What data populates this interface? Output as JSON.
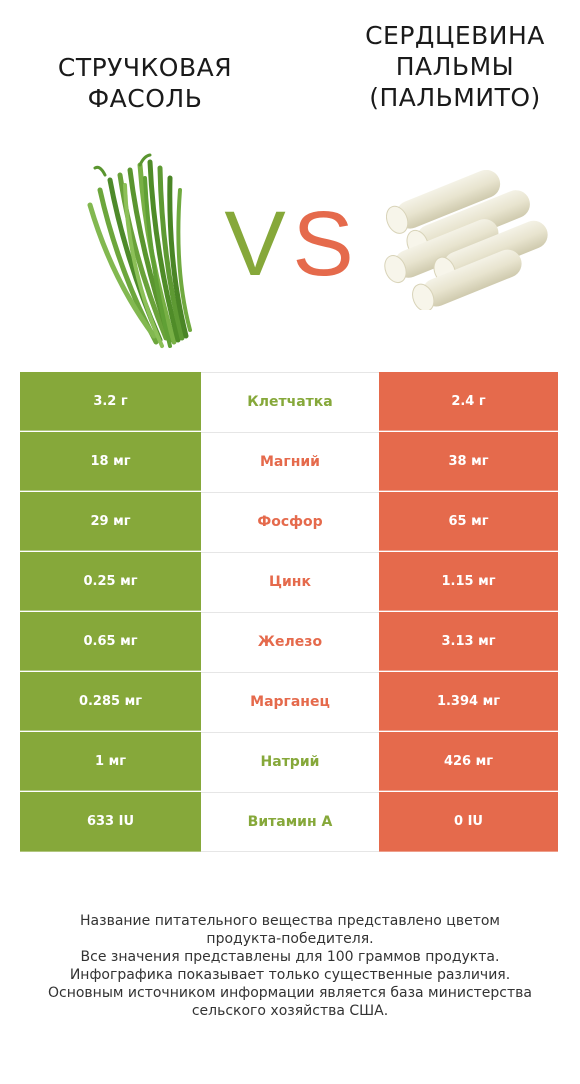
{
  "left_product": {
    "title_lines": [
      "СТРУЧКОВАЯ",
      "ФАСОЛЬ"
    ],
    "color": "#86a83a",
    "image": "green-beans-image"
  },
  "right_product": {
    "title_lines": [
      "СЕРДЦЕВИНА",
      "ПАЛЬМЫ",
      "(ПАЛЬМИТО)"
    ],
    "color": "#e56a4c",
    "image": "palm-hearts-image"
  },
  "vs": {
    "v": "V",
    "s": "S"
  },
  "rows": [
    {
      "left": "3.2 г",
      "nutrient": "Клетчатка",
      "right": "2.4 г",
      "winner": "left"
    },
    {
      "left": "18 мг",
      "nutrient": "Магний",
      "right": "38 мг",
      "winner": "right"
    },
    {
      "left": "29 мг",
      "nutrient": "Фосфор",
      "right": "65 мг",
      "winner": "right"
    },
    {
      "left": "0.25 мг",
      "nutrient": "Цинк",
      "right": "1.15 мг",
      "winner": "right"
    },
    {
      "left": "0.65 мг",
      "nutrient": "Железо",
      "right": "3.13 мг",
      "winner": "right"
    },
    {
      "left": "0.285 мг",
      "nutrient": "Марганец",
      "right": "1.394 мг",
      "winner": "right"
    },
    {
      "left": "1 мг",
      "nutrient": "Натрий",
      "right": "426 мг",
      "winner": "left"
    },
    {
      "left": "633 IU",
      "nutrient": "Витамин A",
      "right": "0 IU",
      "winner": "left"
    }
  ],
  "footer_lines": [
    "Название питательного вещества представлено цветом",
    "продукта-победителя.",
    "Все значения представлены для 100 граммов продукта.",
    "Инфографика показывает только существенные различия.",
    "Основным источником информации является база министерства",
    "сельского хозяйства США."
  ]
}
